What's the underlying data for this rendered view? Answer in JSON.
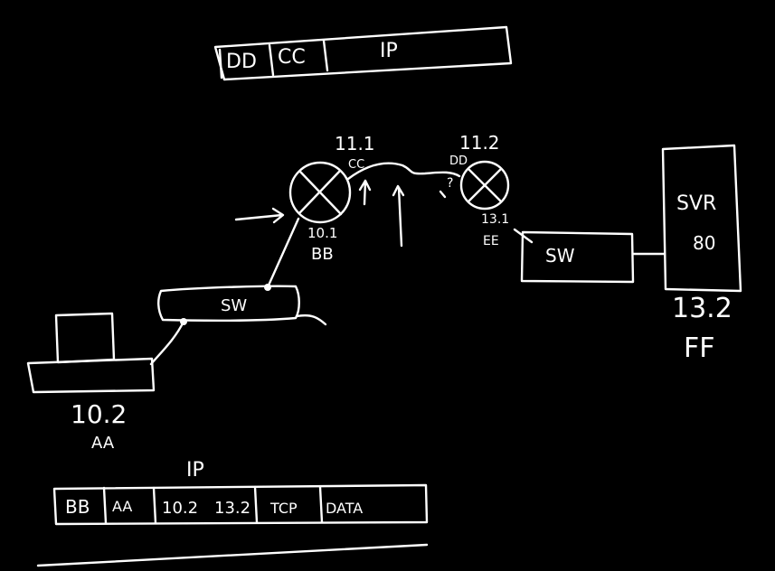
{
  "top_frame": {
    "fields": [
      "DD",
      "CC",
      "IP"
    ]
  },
  "router_left": {
    "top_label": "11.1",
    "top_mac": "CC",
    "bottom_label": "10.1",
    "bottom_mac": "BB"
  },
  "router_right": {
    "top_label": "11.2",
    "top_mac": "DD",
    "question_mark": "?",
    "bottom_label": "13.1",
    "bottom_mac": "EE"
  },
  "switch_left": {
    "label": "SW"
  },
  "switch_right": {
    "label": "SW"
  },
  "server": {
    "label": "SVR",
    "port": "80",
    "ip": "13.2",
    "mac": "FF"
  },
  "host": {
    "ip": "10.2",
    "mac": "AA"
  },
  "bottom_frame": {
    "ip_header_label": "IP",
    "fields": [
      "BB",
      "AA",
      "10.2",
      "13.2",
      "TCP",
      "DATA"
    ]
  },
  "colors": {
    "background": "#000000",
    "ink": "#ffffff"
  }
}
